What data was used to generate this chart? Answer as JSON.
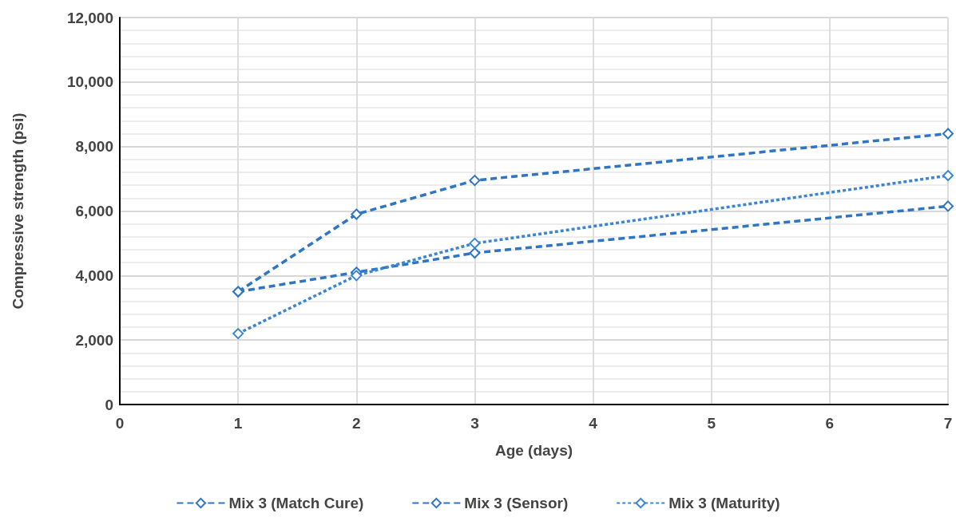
{
  "chart_data": {
    "type": "line",
    "xlabel": "Age (days)",
    "ylabel": "Compressive strength (psi)",
    "x": [
      1,
      2,
      3,
      7
    ],
    "series": [
      {
        "name": "Mix 3 (Match Cure)",
        "color": "#2e75c6",
        "values": [
          3500,
          5900,
          6950,
          8400
        ],
        "line_style": "dashed"
      },
      {
        "name": "Mix 3 (Sensor)",
        "color": "#2e75c6",
        "values": [
          3500,
          4100,
          4700,
          6150
        ],
        "line_style": "dashed"
      },
      {
        "name": "Mix 3 (Maturity)",
        "color": "#3a86d4",
        "values": [
          2200,
          4000,
          5000,
          7100
        ],
        "line_style": "dotted"
      }
    ],
    "xlim": [
      0,
      7
    ],
    "xticks": [
      0,
      1,
      2,
      3,
      4,
      5,
      6,
      7
    ],
    "ylim": [
      0,
      12000
    ],
    "yticks": [
      0,
      {
        "value": 2000,
        "label": "2,000"
      },
      {
        "value": 4000,
        "label": "4,000"
      },
      {
        "value": 6000,
        "label": "6,000"
      },
      {
        "value": 8000,
        "label": "8,000"
      },
      {
        "value": 10000,
        "label": "10,000"
      },
      {
        "value": 12000,
        "label": "12,000"
      }
    ],
    "grid": true,
    "legend": "bottom",
    "marker": "diamond"
  }
}
